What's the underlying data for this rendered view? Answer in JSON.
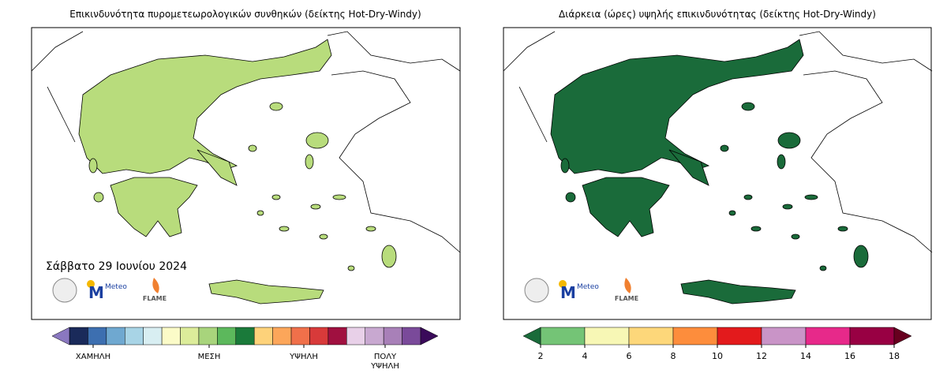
{
  "panels": [
    {
      "title": "Επικινδυνότητα πυρομετεωρολογικών συνθηκών (δείκτης Hot-Dry-Windy)",
      "date": "Σάββατο 29 Ιουνίου 2024",
      "logos": {
        "meteo": "Meteo",
        "flame": "FLAME"
      },
      "colorbar": {
        "labels": [
          "ΧΑΜΗΛΗ",
          "ΜΕΣΗ",
          "ΥΨΗΛΗ",
          "ΠΟΛΥ ΥΨΗΛΗ"
        ],
        "colors": [
          "#1a2a5a",
          "#3d6fb0",
          "#6fa8d0",
          "#a8d4e6",
          "#d8eef2",
          "#fbfbc8",
          "#dcec9a",
          "#a8d47c",
          "#5cb85c",
          "#1a7a3a",
          "#fdd27a",
          "#fca65a",
          "#f0704a",
          "#d83a3a",
          "#a01040",
          "#e8d0e8",
          "#c8a8d0",
          "#a880b8",
          "#7a4a9a"
        ],
        "extend_colors": [
          "#8a78c0",
          "#3a0a5a"
        ]
      }
    },
    {
      "title": "Διάρκεια (ώρες) υψηλής επικινδυνότητας (δείκτης Hot-Dry-Windy)",
      "logos": {
        "meteo": "Meteo",
        "flame": "FLAME"
      },
      "colorbar": {
        "ticks": [
          2,
          4,
          6,
          8,
          10,
          12,
          14,
          16,
          18
        ],
        "colors": [
          "#74c476",
          "#f7f7b5",
          "#fdd77a",
          "#fd8d3c",
          "#e31a1c",
          "#c994c7",
          "#e7298a",
          "#980043"
        ],
        "extend_colors": [
          "#1a6b3a",
          "#67001f"
        ]
      }
    }
  ]
}
